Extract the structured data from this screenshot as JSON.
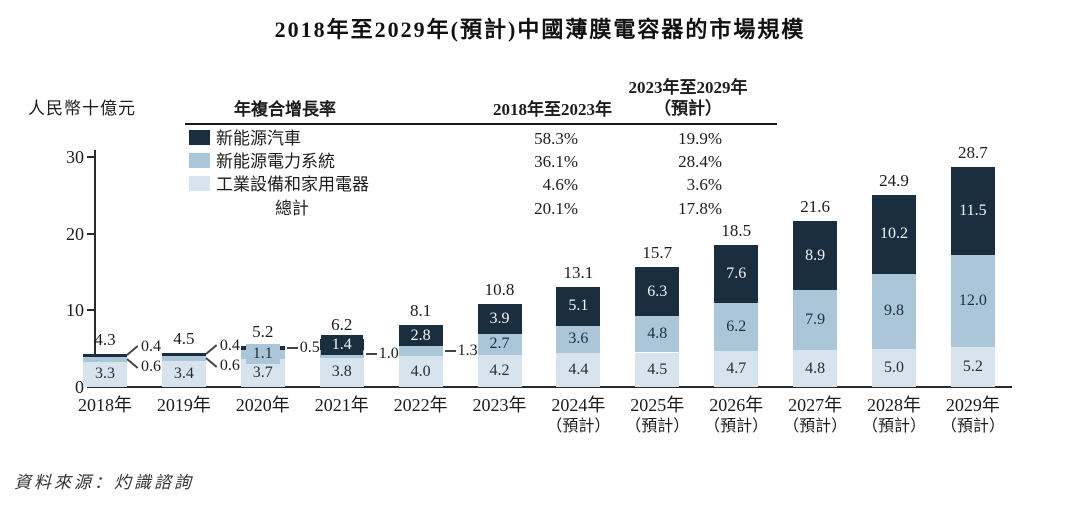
{
  "title": "2018年至2029年(預計)中國薄膜電容器的市場規模",
  "unit_label": "人民幣十億元",
  "source": "資料來源：灼識諮詢",
  "colors": {
    "nev": "#1b2e3f",
    "power": "#aac6d8",
    "industrial": "#d7e3ed",
    "axis": "#2a2a2a"
  },
  "cagr_table": {
    "header_col1": "年複合增長率",
    "header_col2": "2018年至2023年",
    "header_col3_line1": "2023年至2029年",
    "header_col3_line2": "（預計）",
    "rows": [
      {
        "label": "新能源汽車",
        "swatch": "#1b2e3f",
        "cagr_2018_2023": "58.3%",
        "cagr_2023_2029": "19.9%"
      },
      {
        "label": "新能源電力系統",
        "swatch": "#aac6d8",
        "cagr_2018_2023": "36.1%",
        "cagr_2023_2029": "28.4%"
      },
      {
        "label": "工業設備和家用電器",
        "swatch": "#d7e3ed",
        "cagr_2018_2023": "4.6%",
        "cagr_2023_2029": "3.6%"
      },
      {
        "label": "總計",
        "swatch": null,
        "cagr_2018_2023": "20.1%",
        "cagr_2023_2029": "17.8%"
      }
    ]
  },
  "chart_data": {
    "type": "bar",
    "stacked": true,
    "title": "2018年至2029年(預計)中國薄膜電容器的市場規模",
    "xlabel": "",
    "ylabel": "人民幣十億元",
    "ylim": [
      0,
      30
    ],
    "yticks": [
      0,
      10,
      20,
      30
    ],
    "grid": false,
    "legend_position": "top-left-inside",
    "categories": [
      "2018年",
      "2019年",
      "2020年",
      "2021年",
      "2022年",
      "2023年",
      "2024年",
      "2025年",
      "2026年",
      "2027年",
      "2028年",
      "2029年"
    ],
    "sublabels": [
      "",
      "",
      "",
      "",
      "",
      "",
      "（預計）",
      "（預計）",
      "（預計）",
      "（預計）",
      "（預計）",
      "（預計）"
    ],
    "series": [
      {
        "name": "工業設備和家用電器",
        "color": "#d7e3ed",
        "values": [
          3.3,
          3.4,
          3.7,
          3.8,
          4.0,
          4.2,
          4.4,
          4.5,
          4.7,
          4.8,
          5.0,
          5.2
        ]
      },
      {
        "name": "新能源電力系統",
        "color": "#aac6d8",
        "values": [
          0.6,
          0.6,
          1.1,
          1.0,
          1.3,
          2.7,
          3.6,
          4.8,
          6.2,
          7.9,
          9.8,
          12.0
        ]
      },
      {
        "name": "新能源汽車",
        "color": "#1b2e3f",
        "values": [
          0.4,
          0.4,
          0.5,
          1.4,
          2.8,
          3.9,
          5.1,
          6.3,
          7.6,
          8.9,
          10.2,
          11.5
        ]
      }
    ],
    "totals": [
      4.3,
      4.5,
      5.2,
      6.2,
      8.1,
      10.8,
      13.1,
      15.7,
      18.5,
      21.6,
      24.9,
      28.7
    ],
    "label_placement": [
      {
        "nev": "fork",
        "power": "fork"
      },
      {
        "nev": "fork",
        "power": "fork"
      },
      {
        "nev": "dash",
        "power": "inside-bg"
      },
      {
        "nev": "badge",
        "power": "dash"
      },
      {
        "nev": "inside",
        "power": "dash"
      },
      {},
      {},
      {},
      {},
      {},
      {},
      {}
    ]
  }
}
